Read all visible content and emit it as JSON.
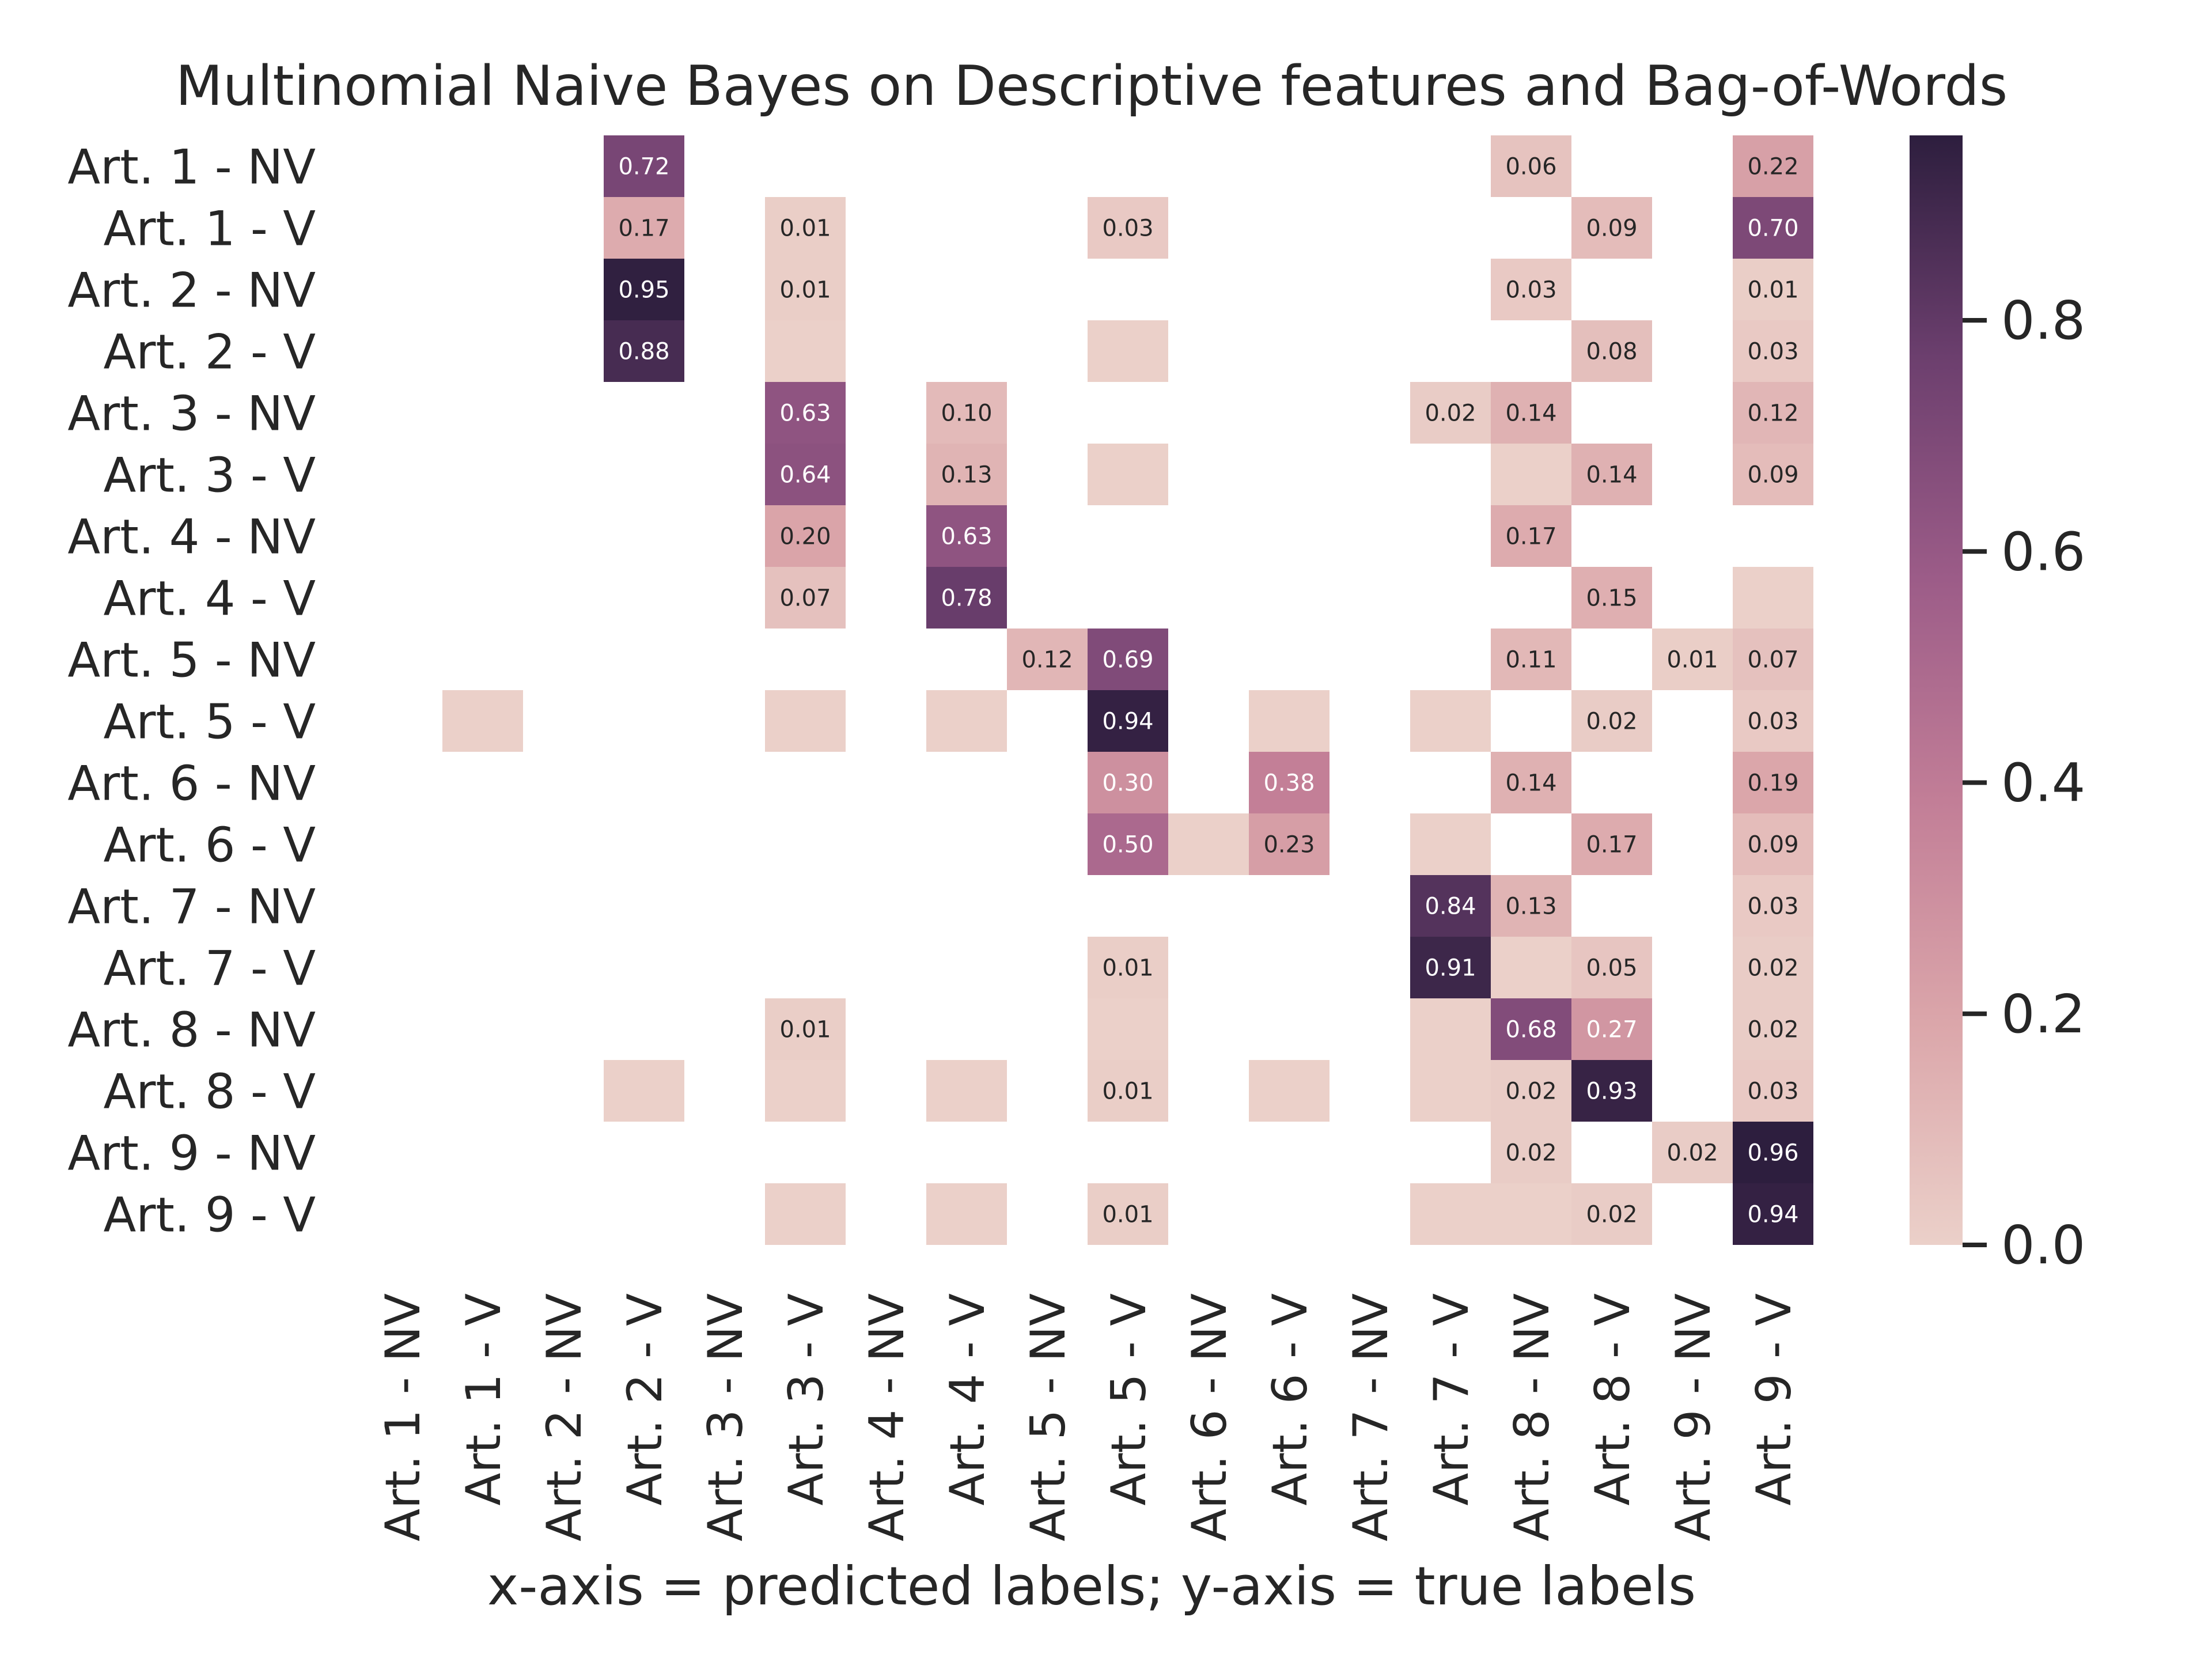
{
  "chart_data": {
    "type": "heatmap",
    "title": "Multinomial Naive Bayes on Descriptive features and Bag-of-Words",
    "xlabel": "x-axis = predicted labels; y-axis = true labels",
    "ylabel": "",
    "row_labels": [
      "Art. 1 - NV",
      "Art. 1 - V",
      "Art. 2 - NV",
      "Art. 2 - V",
      "Art. 3 - NV",
      "Art. 3 - V",
      "Art. 4 - NV",
      "Art. 4 - V",
      "Art. 5 - NV",
      "Art. 5 - V",
      "Art. 6 - NV",
      "Art. 6 - V",
      "Art. 7 - NV",
      "Art. 7 - V",
      "Art. 8 - NV",
      "Art. 8 - V",
      "Art. 9 - NV",
      "Art. 9 - V"
    ],
    "col_labels": [
      "Art. 1 - NV",
      "Art. 1 - V",
      "Art. 2 - NV",
      "Art. 2 - V",
      "Art. 3 - NV",
      "Art. 3 - V",
      "Art. 4 - NV",
      "Art. 4 - V",
      "Art. 5 - NV",
      "Art. 5 - V",
      "Art. 6 - NV",
      "Art. 6 - V",
      "Art. 7 - NV",
      "Art. 7 - V",
      "Art. 8 - NV",
      "Art. 8 - V",
      "Art. 9 - NV",
      "Art. 9 - V"
    ],
    "cells": [
      {
        "r": 0,
        "c": 3,
        "v": 0.72,
        "label": "0.72"
      },
      {
        "r": 0,
        "c": 14,
        "v": 0.06,
        "label": "0.06"
      },
      {
        "r": 0,
        "c": 17,
        "v": 0.22,
        "label": "0.22"
      },
      {
        "r": 1,
        "c": 3,
        "v": 0.17,
        "label": "0.17"
      },
      {
        "r": 1,
        "c": 5,
        "v": 0.01,
        "label": "0.01"
      },
      {
        "r": 1,
        "c": 9,
        "v": 0.03,
        "label": "0.03"
      },
      {
        "r": 1,
        "c": 15,
        "v": 0.09,
        "label": "0.09"
      },
      {
        "r": 1,
        "c": 17,
        "v": 0.7,
        "label": "0.70"
      },
      {
        "r": 2,
        "c": 3,
        "v": 0.95,
        "label": "0.95"
      },
      {
        "r": 2,
        "c": 5,
        "v": 0.01,
        "label": "0.01"
      },
      {
        "r": 2,
        "c": 14,
        "v": 0.03,
        "label": "0.03"
      },
      {
        "r": 2,
        "c": 17,
        "v": 0.01,
        "label": "0.01"
      },
      {
        "r": 3,
        "c": 3,
        "v": 0.88,
        "label": "0.88"
      },
      {
        "r": 3,
        "c": 5,
        "v": 0.0,
        "label": ""
      },
      {
        "r": 3,
        "c": 9,
        "v": 0.0,
        "label": ""
      },
      {
        "r": 3,
        "c": 15,
        "v": 0.08,
        "label": "0.08"
      },
      {
        "r": 3,
        "c": 17,
        "v": 0.03,
        "label": "0.03"
      },
      {
        "r": 4,
        "c": 5,
        "v": 0.63,
        "label": "0.63"
      },
      {
        "r": 4,
        "c": 7,
        "v": 0.1,
        "label": "0.10"
      },
      {
        "r": 4,
        "c": 13,
        "v": 0.02,
        "label": "0.02"
      },
      {
        "r": 4,
        "c": 14,
        "v": 0.14,
        "label": "0.14"
      },
      {
        "r": 4,
        "c": 17,
        "v": 0.12,
        "label": "0.12"
      },
      {
        "r": 5,
        "c": 5,
        "v": 0.64,
        "label": "0.64"
      },
      {
        "r": 5,
        "c": 7,
        "v": 0.13,
        "label": "0.13"
      },
      {
        "r": 5,
        "c": 9,
        "v": 0.0,
        "label": ""
      },
      {
        "r": 5,
        "c": 14,
        "v": 0.0,
        "label": ""
      },
      {
        "r": 5,
        "c": 15,
        "v": 0.14,
        "label": "0.14"
      },
      {
        "r": 5,
        "c": 17,
        "v": 0.09,
        "label": "0.09"
      },
      {
        "r": 6,
        "c": 5,
        "v": 0.2,
        "label": "0.20"
      },
      {
        "r": 6,
        "c": 7,
        "v": 0.63,
        "label": "0.63"
      },
      {
        "r": 6,
        "c": 14,
        "v": 0.17,
        "label": "0.17"
      },
      {
        "r": 7,
        "c": 5,
        "v": 0.07,
        "label": "0.07"
      },
      {
        "r": 7,
        "c": 7,
        "v": 0.78,
        "label": "0.78"
      },
      {
        "r": 7,
        "c": 15,
        "v": 0.15,
        "label": "0.15"
      },
      {
        "r": 7,
        "c": 17,
        "v": 0.0,
        "label": ""
      },
      {
        "r": 8,
        "c": 8,
        "v": 0.12,
        "label": "0.12"
      },
      {
        "r": 8,
        "c": 9,
        "v": 0.69,
        "label": "0.69"
      },
      {
        "r": 8,
        "c": 14,
        "v": 0.11,
        "label": "0.11"
      },
      {
        "r": 8,
        "c": 16,
        "v": 0.01,
        "label": "0.01"
      },
      {
        "r": 8,
        "c": 17,
        "v": 0.07,
        "label": "0.07"
      },
      {
        "r": 9,
        "c": 1,
        "v": 0.0,
        "label": ""
      },
      {
        "r": 9,
        "c": 5,
        "v": 0.0,
        "label": ""
      },
      {
        "r": 9,
        "c": 7,
        "v": 0.0,
        "label": ""
      },
      {
        "r": 9,
        "c": 9,
        "v": 0.94,
        "label": "0.94"
      },
      {
        "r": 9,
        "c": 11,
        "v": 0.0,
        "label": ""
      },
      {
        "r": 9,
        "c": 13,
        "v": 0.0,
        "label": ""
      },
      {
        "r": 9,
        "c": 15,
        "v": 0.02,
        "label": "0.02"
      },
      {
        "r": 9,
        "c": 17,
        "v": 0.03,
        "label": "0.03"
      },
      {
        "r": 10,
        "c": 9,
        "v": 0.3,
        "label": "0.30"
      },
      {
        "r": 10,
        "c": 11,
        "v": 0.38,
        "label": "0.38"
      },
      {
        "r": 10,
        "c": 14,
        "v": 0.14,
        "label": "0.14"
      },
      {
        "r": 10,
        "c": 17,
        "v": 0.19,
        "label": "0.19"
      },
      {
        "r": 11,
        "c": 9,
        "v": 0.5,
        "label": "0.50"
      },
      {
        "r": 11,
        "c": 10,
        "v": 0.0,
        "label": ""
      },
      {
        "r": 11,
        "c": 11,
        "v": 0.23,
        "label": "0.23"
      },
      {
        "r": 11,
        "c": 13,
        "v": 0.0,
        "label": ""
      },
      {
        "r": 11,
        "c": 15,
        "v": 0.17,
        "label": "0.17"
      },
      {
        "r": 11,
        "c": 17,
        "v": 0.09,
        "label": "0.09"
      },
      {
        "r": 12,
        "c": 13,
        "v": 0.84,
        "label": "0.84"
      },
      {
        "r": 12,
        "c": 14,
        "v": 0.13,
        "label": "0.13"
      },
      {
        "r": 12,
        "c": 17,
        "v": 0.03,
        "label": "0.03"
      },
      {
        "r": 13,
        "c": 9,
        "v": 0.01,
        "label": "0.01"
      },
      {
        "r": 13,
        "c": 13,
        "v": 0.91,
        "label": "0.91"
      },
      {
        "r": 13,
        "c": 14,
        "v": 0.0,
        "label": ""
      },
      {
        "r": 13,
        "c": 15,
        "v": 0.05,
        "label": "0.05"
      },
      {
        "r": 13,
        "c": 17,
        "v": 0.02,
        "label": "0.02"
      },
      {
        "r": 14,
        "c": 5,
        "v": 0.01,
        "label": "0.01"
      },
      {
        "r": 14,
        "c": 9,
        "v": 0.0,
        "label": ""
      },
      {
        "r": 14,
        "c": 13,
        "v": 0.0,
        "label": ""
      },
      {
        "r": 14,
        "c": 14,
        "v": 0.68,
        "label": "0.68"
      },
      {
        "r": 14,
        "c": 15,
        "v": 0.27,
        "label": "0.27"
      },
      {
        "r": 14,
        "c": 17,
        "v": 0.02,
        "label": "0.02"
      },
      {
        "r": 15,
        "c": 3,
        "v": 0.0,
        "label": ""
      },
      {
        "r": 15,
        "c": 5,
        "v": 0.0,
        "label": ""
      },
      {
        "r": 15,
        "c": 7,
        "v": 0.0,
        "label": ""
      },
      {
        "r": 15,
        "c": 9,
        "v": 0.01,
        "label": "0.01"
      },
      {
        "r": 15,
        "c": 11,
        "v": 0.0,
        "label": ""
      },
      {
        "r": 15,
        "c": 13,
        "v": 0.0,
        "label": ""
      },
      {
        "r": 15,
        "c": 14,
        "v": 0.02,
        "label": "0.02"
      },
      {
        "r": 15,
        "c": 15,
        "v": 0.93,
        "label": "0.93"
      },
      {
        "r": 15,
        "c": 17,
        "v": 0.03,
        "label": "0.03"
      },
      {
        "r": 16,
        "c": 14,
        "v": 0.02,
        "label": "0.02"
      },
      {
        "r": 16,
        "c": 16,
        "v": 0.02,
        "label": "0.02"
      },
      {
        "r": 16,
        "c": 17,
        "v": 0.96,
        "label": "0.96"
      },
      {
        "r": 17,
        "c": 5,
        "v": 0.0,
        "label": ""
      },
      {
        "r": 17,
        "c": 7,
        "v": 0.0,
        "label": ""
      },
      {
        "r": 17,
        "c": 9,
        "v": 0.01,
        "label": "0.01"
      },
      {
        "r": 17,
        "c": 13,
        "v": 0.0,
        "label": ""
      },
      {
        "r": 17,
        "c": 14,
        "v": 0.0,
        "label": ""
      },
      {
        "r": 17,
        "c": 15,
        "v": 0.02,
        "label": "0.02"
      },
      {
        "r": 17,
        "c": 17,
        "v": 0.94,
        "label": "0.94"
      }
    ],
    "colorbar": {
      "vmin": 0.0,
      "vmax": 0.96,
      "ticks": [
        0.0,
        0.2,
        0.4,
        0.6,
        0.8
      ],
      "tick_labels": [
        "0.0",
        "0.2",
        "0.4",
        "0.6",
        "0.8"
      ]
    },
    "colormap_stops": [
      "#ebd0c9",
      "#dba6aa",
      "#c27e97",
      "#9c5c88",
      "#6c3f6e",
      "#2d1e3e"
    ],
    "grid": false
  }
}
